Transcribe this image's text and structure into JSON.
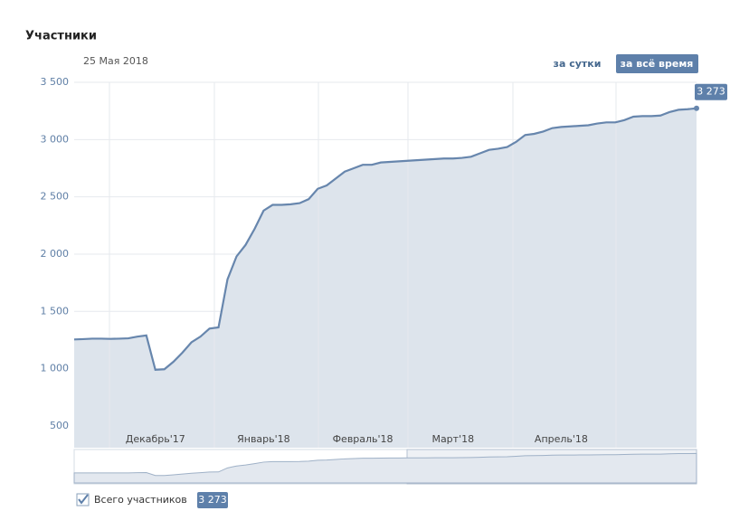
{
  "header": {
    "title": "Участники",
    "date": "25 Мая 2018",
    "buttons": [
      "за сутки",
      "за всё время"
    ]
  },
  "chart_data": {
    "type": "line",
    "categories": [
      null,
      null,
      null,
      null,
      null,
      null,
      null,
      null,
      null,
      "Декабрь'17",
      null,
      null,
      null,
      null,
      null,
      null,
      null,
      null,
      null,
      null,
      null,
      "Январь'18",
      null,
      null,
      null,
      null,
      null,
      null,
      null,
      null,
      null,
      null,
      "Февраль'18",
      null,
      null,
      null,
      null,
      null,
      null,
      null,
      null,
      null,
      "Март'18",
      null,
      null,
      null,
      null,
      null,
      null,
      null,
      null,
      null,
      null,
      null,
      "Апрель'18",
      null,
      null,
      null,
      null,
      null,
      null,
      null,
      null,
      null,
      null,
      null,
      null,
      null,
      null,
      null
    ],
    "series": [
      {
        "name": "Всего участников",
        "color": "#6786ad",
        "values": [
          1255,
          1258,
          1262,
          1262,
          1260,
          1262,
          1265,
          1280,
          1290,
          990,
          995,
          1060,
          1140,
          1230,
          1280,
          1350,
          1360,
          1780,
          1980,
          2080,
          2220,
          2380,
          2430,
          2430,
          2435,
          2445,
          2480,
          2570,
          2600,
          2660,
          2720,
          2750,
          2780,
          2780,
          2800,
          2805,
          2810,
          2815,
          2820,
          2825,
          2830,
          2835,
          2835,
          2840,
          2850,
          2880,
          2910,
          2920,
          2935,
          2980,
          3040,
          3050,
          3070,
          3100,
          3110,
          3115,
          3120,
          3125,
          3140,
          3150,
          3150,
          3170,
          3200,
          3205,
          3205,
          3210,
          3240,
          3260,
          3265,
          3273
        ],
        "value_labels": [
          null,
          null,
          null,
          null,
          null,
          null,
          null,
          null,
          null,
          null,
          null,
          null,
          null,
          null,
          null,
          null,
          null,
          null,
          null,
          null,
          null,
          null,
          null,
          null,
          null,
          null,
          null,
          null,
          null,
          null,
          null,
          null,
          null,
          null,
          null,
          null,
          null,
          null,
          null,
          null,
          null,
          null,
          null,
          null,
          null,
          null,
          null,
          null,
          null,
          null,
          null,
          null,
          null,
          null,
          null,
          null,
          null,
          null,
          null,
          null,
          null,
          null,
          null,
          null,
          null,
          null,
          null,
          null,
          null,
          "3 273"
        ]
      }
    ],
    "ylim": [
      310,
      3500
    ],
    "yticks": [
      500,
      {
        "value": 1000,
        "label": "1 000"
      },
      {
        "value": 1500,
        "label": "1 500"
      },
      {
        "value": 2000,
        "label": "2 000"
      },
      {
        "value": 2500,
        "label": "2 500"
      },
      {
        "value": 3000,
        "label": "3 000"
      },
      {
        "value": 3500,
        "label": "3 500"
      }
    ],
    "grid": true,
    "fill": "#dde4ec"
  }
}
